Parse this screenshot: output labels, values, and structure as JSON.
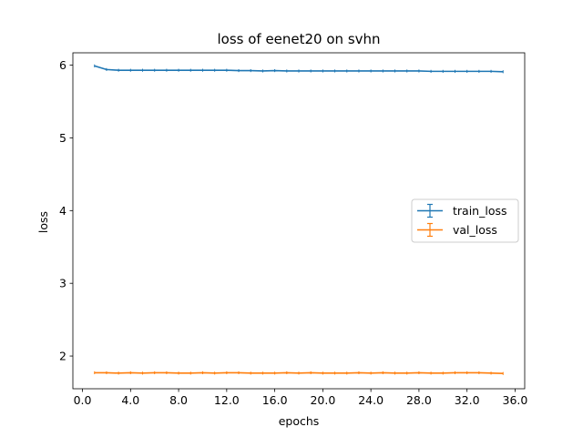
{
  "chart_data": {
    "type": "line",
    "title": "loss of eenet20 on svhn",
    "xlabel": "epochs",
    "ylabel": "loss",
    "xlim": [
      -0.8,
      36.8
    ],
    "ylim": [
      1.55,
      6.17
    ],
    "xticks": [
      0.0,
      4.0,
      8.0,
      12.0,
      16.0,
      20.0,
      24.0,
      28.0,
      32.0,
      36.0
    ],
    "xtick_labels": [
      "0.0",
      "4.0",
      "8.0",
      "12.0",
      "16.0",
      "20.0",
      "24.0",
      "28.0",
      "32.0",
      "36.0"
    ],
    "yticks": [
      2,
      3,
      4,
      5,
      6
    ],
    "ytick_labels": [
      "2",
      "3",
      "4",
      "5",
      "6"
    ],
    "grid": false,
    "legend_position": "right",
    "x": [
      1,
      2,
      3,
      4,
      5,
      6,
      7,
      8,
      9,
      10,
      11,
      12,
      13,
      14,
      15,
      16,
      17,
      18,
      19,
      20,
      21,
      22,
      23,
      24,
      25,
      26,
      27,
      28,
      29,
      30,
      31,
      32,
      33,
      34,
      35
    ],
    "series": [
      {
        "name": "train_loss",
        "color": "#1f77b4",
        "values": [
          5.99,
          5.94,
          5.93,
          5.93,
          5.93,
          5.93,
          5.93,
          5.93,
          5.93,
          5.93,
          5.93,
          5.93,
          5.925,
          5.925,
          5.92,
          5.925,
          5.92,
          5.92,
          5.92,
          5.92,
          5.92,
          5.92,
          5.92,
          5.92,
          5.92,
          5.92,
          5.92,
          5.92,
          5.915,
          5.915,
          5.915,
          5.915,
          5.915,
          5.915,
          5.91
        ]
      },
      {
        "name": "val_loss",
        "color": "#ff7f0e",
        "values": [
          1.77,
          1.77,
          1.765,
          1.77,
          1.765,
          1.77,
          1.77,
          1.765,
          1.765,
          1.77,
          1.765,
          1.77,
          1.77,
          1.765,
          1.765,
          1.765,
          1.77,
          1.765,
          1.77,
          1.765,
          1.765,
          1.765,
          1.77,
          1.765,
          1.77,
          1.765,
          1.765,
          1.77,
          1.765,
          1.765,
          1.77,
          1.77,
          1.77,
          1.765,
          1.76
        ]
      }
    ]
  }
}
